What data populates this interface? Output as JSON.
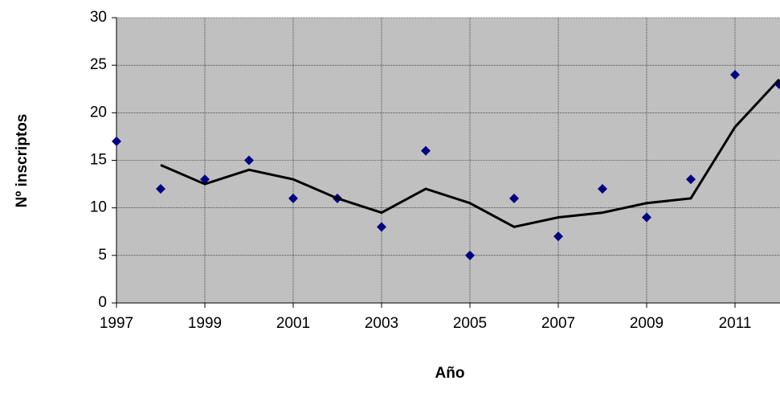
{
  "chart_data": {
    "type": "scatter",
    "x_label": "Año",
    "y_label": "Nº inscriptos",
    "x": [
      1997,
      1998,
      1999,
      2000,
      2001,
      2002,
      2003,
      2004,
      2005,
      2006,
      2007,
      2008,
      2009,
      2010,
      2011,
      2012
    ],
    "series": [
      {
        "mode": "markers",
        "color": "#000080",
        "values": [
          17,
          12,
          13,
          15,
          11,
          11,
          8,
          16,
          5,
          11,
          7,
          12,
          9,
          13,
          24,
          23
        ]
      },
      {
        "mode": "line",
        "color": "#000000",
        "values": [
          null,
          14.5,
          12.5,
          14,
          13,
          11,
          9.5,
          12,
          10.5,
          8,
          9,
          9.5,
          10.5,
          11,
          18.5,
          23.5
        ]
      }
    ],
    "xlim": [
      1997,
      2012
    ],
    "xticks": [
      1997,
      1999,
      2001,
      2003,
      2005,
      2007,
      2009,
      2011
    ],
    "ylim": [
      0,
      30
    ],
    "yticks": [
      0,
      5,
      10,
      15,
      20,
      25,
      30
    ],
    "grid": true,
    "plot_background": "#c0c0c0"
  }
}
